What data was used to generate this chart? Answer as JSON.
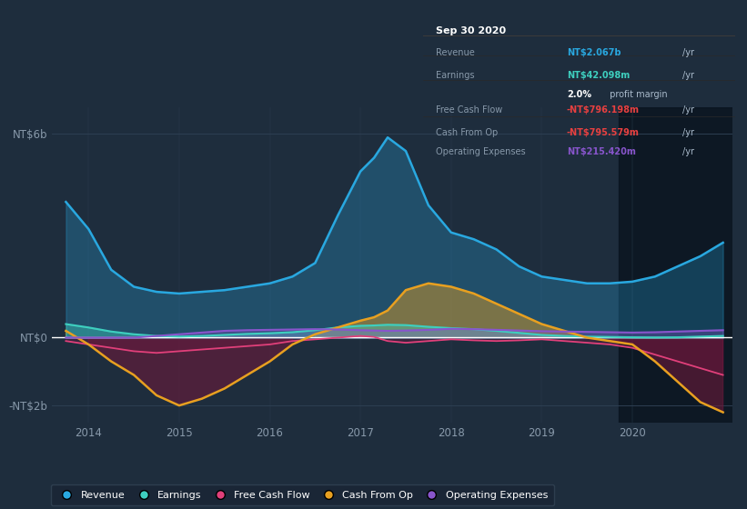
{
  "bg_color": "#1e2d3d",
  "plot_bg_color": "#1e2d3d",
  "ylim": [
    -2500000000,
    6800000000
  ],
  "yticks": [
    -2000000000,
    0,
    6000000000
  ],
  "xlim": [
    2013.6,
    2021.1
  ],
  "xticks": [
    2014,
    2015,
    2016,
    2017,
    2018,
    2019,
    2020
  ],
  "grid_color": "#2d3f52",
  "zero_line_color": "#ffffff",
  "colors": {
    "revenue": "#29a8e0",
    "earnings": "#3ecfbf",
    "free_cash_flow": "#e0407a",
    "cash_from_op": "#e8a020",
    "operating_expenses": "#8855cc"
  },
  "legend_items": [
    {
      "label": "Revenue",
      "color": "#29a8e0"
    },
    {
      "label": "Earnings",
      "color": "#3ecfbf"
    },
    {
      "label": "Free Cash Flow",
      "color": "#e0407a"
    },
    {
      "label": "Cash From Op",
      "color": "#e8a020"
    },
    {
      "label": "Operating Expenses",
      "color": "#8855cc"
    }
  ],
  "info_box": {
    "date": "Sep 30 2020",
    "revenue_val": "NT$2.067b",
    "revenue_color": "#29a8e0",
    "earnings_val": "NT$42.098m",
    "earnings_color": "#3ecfbf",
    "profit_margin": "2.0%",
    "fcf_val": "-NT$796.198m",
    "fcf_color": "#e84040",
    "cash_val": "-NT$795.579m",
    "cash_color": "#e84040",
    "opex_val": "NT$215.420m",
    "opex_color": "#8855cc",
    "bg_color": "#060a0f",
    "border_color": "#444444"
  },
  "darker_region_start": 2019.85,
  "time_points": [
    2013.75,
    2014.0,
    2014.25,
    2014.5,
    2014.75,
    2015.0,
    2015.25,
    2015.5,
    2015.75,
    2016.0,
    2016.25,
    2016.5,
    2016.75,
    2017.0,
    2017.15,
    2017.3,
    2017.5,
    2017.75,
    2018.0,
    2018.25,
    2018.5,
    2018.75,
    2019.0,
    2019.25,
    2019.5,
    2019.75,
    2020.0,
    2020.25,
    2020.5,
    2020.75,
    2021.0
  ],
  "revenue": [
    4000000000,
    3200000000,
    2000000000,
    1500000000,
    1350000000,
    1300000000,
    1350000000,
    1400000000,
    1500000000,
    1600000000,
    1800000000,
    2200000000,
    3600000000,
    4900000000,
    5300000000,
    5900000000,
    5500000000,
    3900000000,
    3100000000,
    2900000000,
    2600000000,
    2100000000,
    1800000000,
    1700000000,
    1600000000,
    1600000000,
    1650000000,
    1800000000,
    2100000000,
    2400000000,
    2800000000
  ],
  "earnings": [
    400000000,
    300000000,
    180000000,
    100000000,
    50000000,
    30000000,
    50000000,
    80000000,
    110000000,
    130000000,
    160000000,
    220000000,
    300000000,
    350000000,
    360000000,
    380000000,
    370000000,
    320000000,
    280000000,
    250000000,
    200000000,
    140000000,
    80000000,
    50000000,
    30000000,
    20000000,
    10000000,
    5000000,
    10000000,
    30000000,
    50000000
  ],
  "free_cash_flow": [
    -100000000,
    -200000000,
    -300000000,
    -400000000,
    -450000000,
    -400000000,
    -350000000,
    -300000000,
    -250000000,
    -200000000,
    -100000000,
    -50000000,
    0,
    50000000,
    20000000,
    -100000000,
    -150000000,
    -100000000,
    -50000000,
    -80000000,
    -100000000,
    -80000000,
    -50000000,
    -100000000,
    -150000000,
    -200000000,
    -300000000,
    -500000000,
    -700000000,
    -900000000,
    -1100000000
  ],
  "cash_from_op": [
    200000000,
    -200000000,
    -700000000,
    -1100000000,
    -1700000000,
    -2000000000,
    -1800000000,
    -1500000000,
    -1100000000,
    -700000000,
    -200000000,
    100000000,
    300000000,
    500000000,
    600000000,
    800000000,
    1400000000,
    1600000000,
    1500000000,
    1300000000,
    1000000000,
    700000000,
    400000000,
    200000000,
    0,
    -100000000,
    -200000000,
    -700000000,
    -1300000000,
    -1900000000,
    -2200000000
  ],
  "operating_expenses": [
    0,
    0,
    0,
    0,
    50000000,
    100000000,
    150000000,
    200000000,
    220000000,
    230000000,
    240000000,
    250000000,
    240000000,
    220000000,
    210000000,
    200000000,
    210000000,
    230000000,
    260000000,
    250000000,
    230000000,
    210000000,
    190000000,
    180000000,
    170000000,
    160000000,
    150000000,
    160000000,
    180000000,
    200000000,
    220000000
  ]
}
